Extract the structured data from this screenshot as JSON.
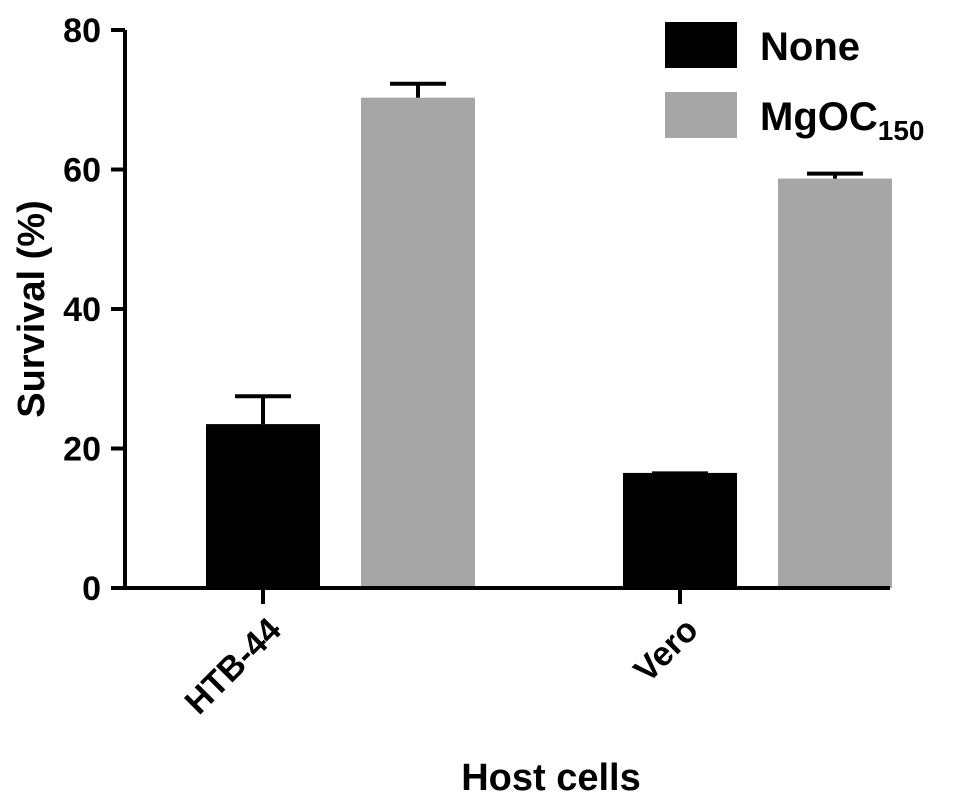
{
  "chart_data": {
    "type": "bar",
    "categories": [
      "HTB-44",
      "Vero"
    ],
    "series": [
      {
        "name": "None",
        "values": [
          23.5,
          16.5
        ],
        "errors": [
          4.0,
          0
        ],
        "color": "#000000"
      },
      {
        "name": "MgOC150",
        "name_base": "MgOC",
        "name_sub": "150",
        "values": [
          70.3,
          58.7
        ],
        "errors": [
          2.0,
          0.7
        ],
        "color": "#a6a6a6"
      }
    ],
    "xlabel": "Host cells",
    "ylabel": "Survival (%)",
    "ylim": [
      0,
      80
    ],
    "yticks": [
      0,
      20,
      40,
      60,
      80
    ],
    "error_bars": "upper",
    "grid": false,
    "legend": "top-right"
  }
}
